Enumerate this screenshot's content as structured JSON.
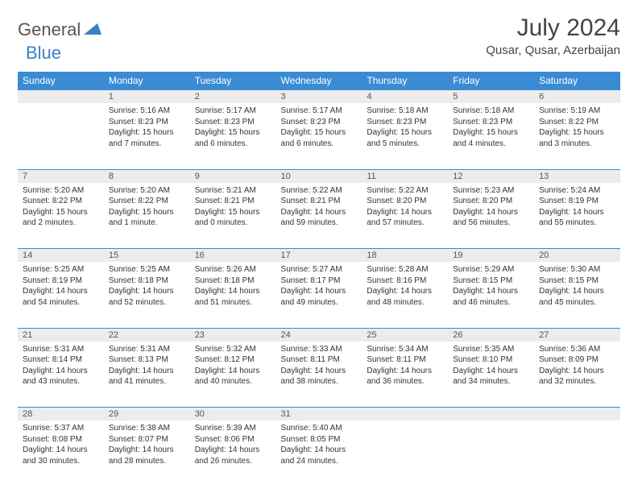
{
  "branding": {
    "part1": "General",
    "part2": "Blue"
  },
  "title": "July 2024",
  "location": "Qusar, Qusar, Azerbaijan",
  "header_bg": "#3b8bd4",
  "header_fg": "#ffffff",
  "daynum_bg": "#ececec",
  "border_color": "#3b8bd4",
  "weekdays": [
    "Sunday",
    "Monday",
    "Tuesday",
    "Wednesday",
    "Thursday",
    "Friday",
    "Saturday"
  ],
  "weeks": [
    {
      "nums": [
        "",
        "1",
        "2",
        "3",
        "4",
        "5",
        "6"
      ],
      "cells": [
        null,
        {
          "sr": "Sunrise: 5:16 AM",
          "ss": "Sunset: 8:23 PM",
          "dl": "Daylight: 15 hours and 7 minutes."
        },
        {
          "sr": "Sunrise: 5:17 AM",
          "ss": "Sunset: 8:23 PM",
          "dl": "Daylight: 15 hours and 6 minutes."
        },
        {
          "sr": "Sunrise: 5:17 AM",
          "ss": "Sunset: 8:23 PM",
          "dl": "Daylight: 15 hours and 6 minutes."
        },
        {
          "sr": "Sunrise: 5:18 AM",
          "ss": "Sunset: 8:23 PM",
          "dl": "Daylight: 15 hours and 5 minutes."
        },
        {
          "sr": "Sunrise: 5:18 AM",
          "ss": "Sunset: 8:23 PM",
          "dl": "Daylight: 15 hours and 4 minutes."
        },
        {
          "sr": "Sunrise: 5:19 AM",
          "ss": "Sunset: 8:22 PM",
          "dl": "Daylight: 15 hours and 3 minutes."
        }
      ]
    },
    {
      "nums": [
        "7",
        "8",
        "9",
        "10",
        "11",
        "12",
        "13"
      ],
      "cells": [
        {
          "sr": "Sunrise: 5:20 AM",
          "ss": "Sunset: 8:22 PM",
          "dl": "Daylight: 15 hours and 2 minutes."
        },
        {
          "sr": "Sunrise: 5:20 AM",
          "ss": "Sunset: 8:22 PM",
          "dl": "Daylight: 15 hours and 1 minute."
        },
        {
          "sr": "Sunrise: 5:21 AM",
          "ss": "Sunset: 8:21 PM",
          "dl": "Daylight: 15 hours and 0 minutes."
        },
        {
          "sr": "Sunrise: 5:22 AM",
          "ss": "Sunset: 8:21 PM",
          "dl": "Daylight: 14 hours and 59 minutes."
        },
        {
          "sr": "Sunrise: 5:22 AM",
          "ss": "Sunset: 8:20 PM",
          "dl": "Daylight: 14 hours and 57 minutes."
        },
        {
          "sr": "Sunrise: 5:23 AM",
          "ss": "Sunset: 8:20 PM",
          "dl": "Daylight: 14 hours and 56 minutes."
        },
        {
          "sr": "Sunrise: 5:24 AM",
          "ss": "Sunset: 8:19 PM",
          "dl": "Daylight: 14 hours and 55 minutes."
        }
      ]
    },
    {
      "nums": [
        "14",
        "15",
        "16",
        "17",
        "18",
        "19",
        "20"
      ],
      "cells": [
        {
          "sr": "Sunrise: 5:25 AM",
          "ss": "Sunset: 8:19 PM",
          "dl": "Daylight: 14 hours and 54 minutes."
        },
        {
          "sr": "Sunrise: 5:25 AM",
          "ss": "Sunset: 8:18 PM",
          "dl": "Daylight: 14 hours and 52 minutes."
        },
        {
          "sr": "Sunrise: 5:26 AM",
          "ss": "Sunset: 8:18 PM",
          "dl": "Daylight: 14 hours and 51 minutes."
        },
        {
          "sr": "Sunrise: 5:27 AM",
          "ss": "Sunset: 8:17 PM",
          "dl": "Daylight: 14 hours and 49 minutes."
        },
        {
          "sr": "Sunrise: 5:28 AM",
          "ss": "Sunset: 8:16 PM",
          "dl": "Daylight: 14 hours and 48 minutes."
        },
        {
          "sr": "Sunrise: 5:29 AM",
          "ss": "Sunset: 8:15 PM",
          "dl": "Daylight: 14 hours and 46 minutes."
        },
        {
          "sr": "Sunrise: 5:30 AM",
          "ss": "Sunset: 8:15 PM",
          "dl": "Daylight: 14 hours and 45 minutes."
        }
      ]
    },
    {
      "nums": [
        "21",
        "22",
        "23",
        "24",
        "25",
        "26",
        "27"
      ],
      "cells": [
        {
          "sr": "Sunrise: 5:31 AM",
          "ss": "Sunset: 8:14 PM",
          "dl": "Daylight: 14 hours and 43 minutes."
        },
        {
          "sr": "Sunrise: 5:31 AM",
          "ss": "Sunset: 8:13 PM",
          "dl": "Daylight: 14 hours and 41 minutes."
        },
        {
          "sr": "Sunrise: 5:32 AM",
          "ss": "Sunset: 8:12 PM",
          "dl": "Daylight: 14 hours and 40 minutes."
        },
        {
          "sr": "Sunrise: 5:33 AM",
          "ss": "Sunset: 8:11 PM",
          "dl": "Daylight: 14 hours and 38 minutes."
        },
        {
          "sr": "Sunrise: 5:34 AM",
          "ss": "Sunset: 8:11 PM",
          "dl": "Daylight: 14 hours and 36 minutes."
        },
        {
          "sr": "Sunrise: 5:35 AM",
          "ss": "Sunset: 8:10 PM",
          "dl": "Daylight: 14 hours and 34 minutes."
        },
        {
          "sr": "Sunrise: 5:36 AM",
          "ss": "Sunset: 8:09 PM",
          "dl": "Daylight: 14 hours and 32 minutes."
        }
      ]
    },
    {
      "nums": [
        "28",
        "29",
        "30",
        "31",
        "",
        "",
        ""
      ],
      "cells": [
        {
          "sr": "Sunrise: 5:37 AM",
          "ss": "Sunset: 8:08 PM",
          "dl": "Daylight: 14 hours and 30 minutes."
        },
        {
          "sr": "Sunrise: 5:38 AM",
          "ss": "Sunset: 8:07 PM",
          "dl": "Daylight: 14 hours and 28 minutes."
        },
        {
          "sr": "Sunrise: 5:39 AM",
          "ss": "Sunset: 8:06 PM",
          "dl": "Daylight: 14 hours and 26 minutes."
        },
        {
          "sr": "Sunrise: 5:40 AM",
          "ss": "Sunset: 8:05 PM",
          "dl": "Daylight: 14 hours and 24 minutes."
        },
        null,
        null,
        null
      ]
    }
  ]
}
